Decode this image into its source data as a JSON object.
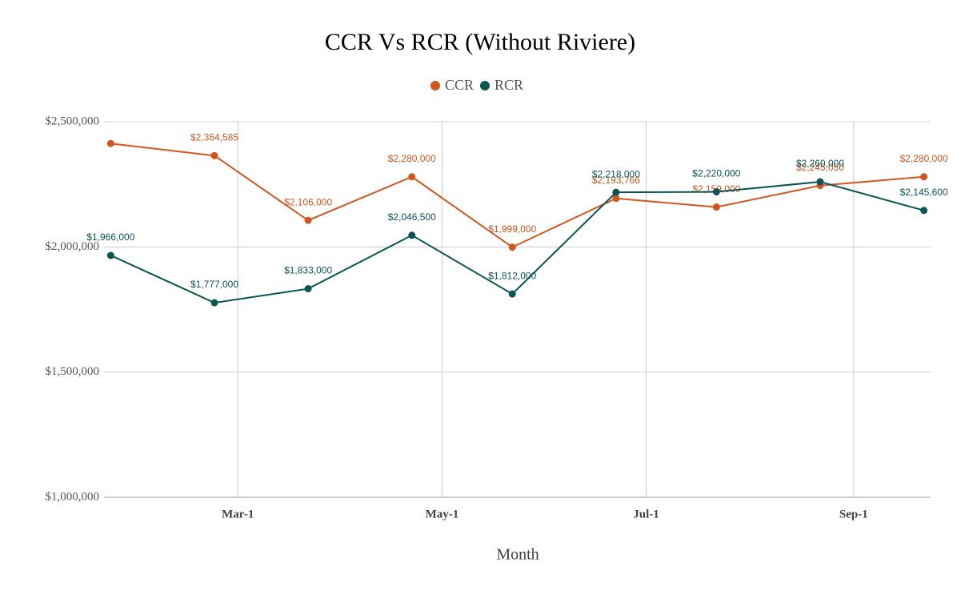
{
  "chart_data": {
    "type": "line",
    "title": "CCR Vs RCR (Without Riviere)",
    "x_label": "Month",
    "x": [
      22,
      53,
      81,
      112,
      142,
      173,
      203,
      234,
      265
    ],
    "xlim": [
      20,
      267
    ],
    "xticks": [
      {
        "value": 60,
        "label": "Mar-1"
      },
      {
        "value": 121,
        "label": "May-1"
      },
      {
        "value": 182,
        "label": "Jul-1"
      },
      {
        "value": 244,
        "label": "Sep-1"
      }
    ],
    "ylim": [
      1000000,
      2500000
    ],
    "yticks": [
      {
        "value": 1000000,
        "label": "$1,000,000"
      },
      {
        "value": 1500000,
        "label": "$1,500,000"
      },
      {
        "value": 2000000,
        "label": "$2,000,000"
      },
      {
        "value": 2500000,
        "label": "$2,500,000"
      }
    ],
    "grid": true,
    "legend": "top",
    "series": [
      {
        "name": "CCR",
        "color": "#d1561d",
        "values": [
          2413000,
          2364585,
          2106000,
          2280000,
          1999000,
          2193766,
          2159000,
          2245050,
          2280000
        ],
        "value_labels": [
          null,
          "$2,364,585",
          "$2,106,000",
          "$2,280,000",
          "$1,999,000",
          "$2,193,766",
          "$2,159,000",
          "$2,245,050",
          "$2,280,000"
        ]
      },
      {
        "name": "RCR",
        "color": "#0b5553",
        "values": [
          1966000,
          1777000,
          1833000,
          2046500,
          1812000,
          2218000,
          2220000,
          2260000,
          2145600
        ],
        "value_labels": [
          "$1,966,000",
          "$1,777,000",
          "$1,833,000",
          "$2,046,500",
          "$1,812,000",
          "$2,218,000",
          "$2,220,000",
          "$2,260,000",
          "$2,145,600"
        ]
      }
    ]
  }
}
